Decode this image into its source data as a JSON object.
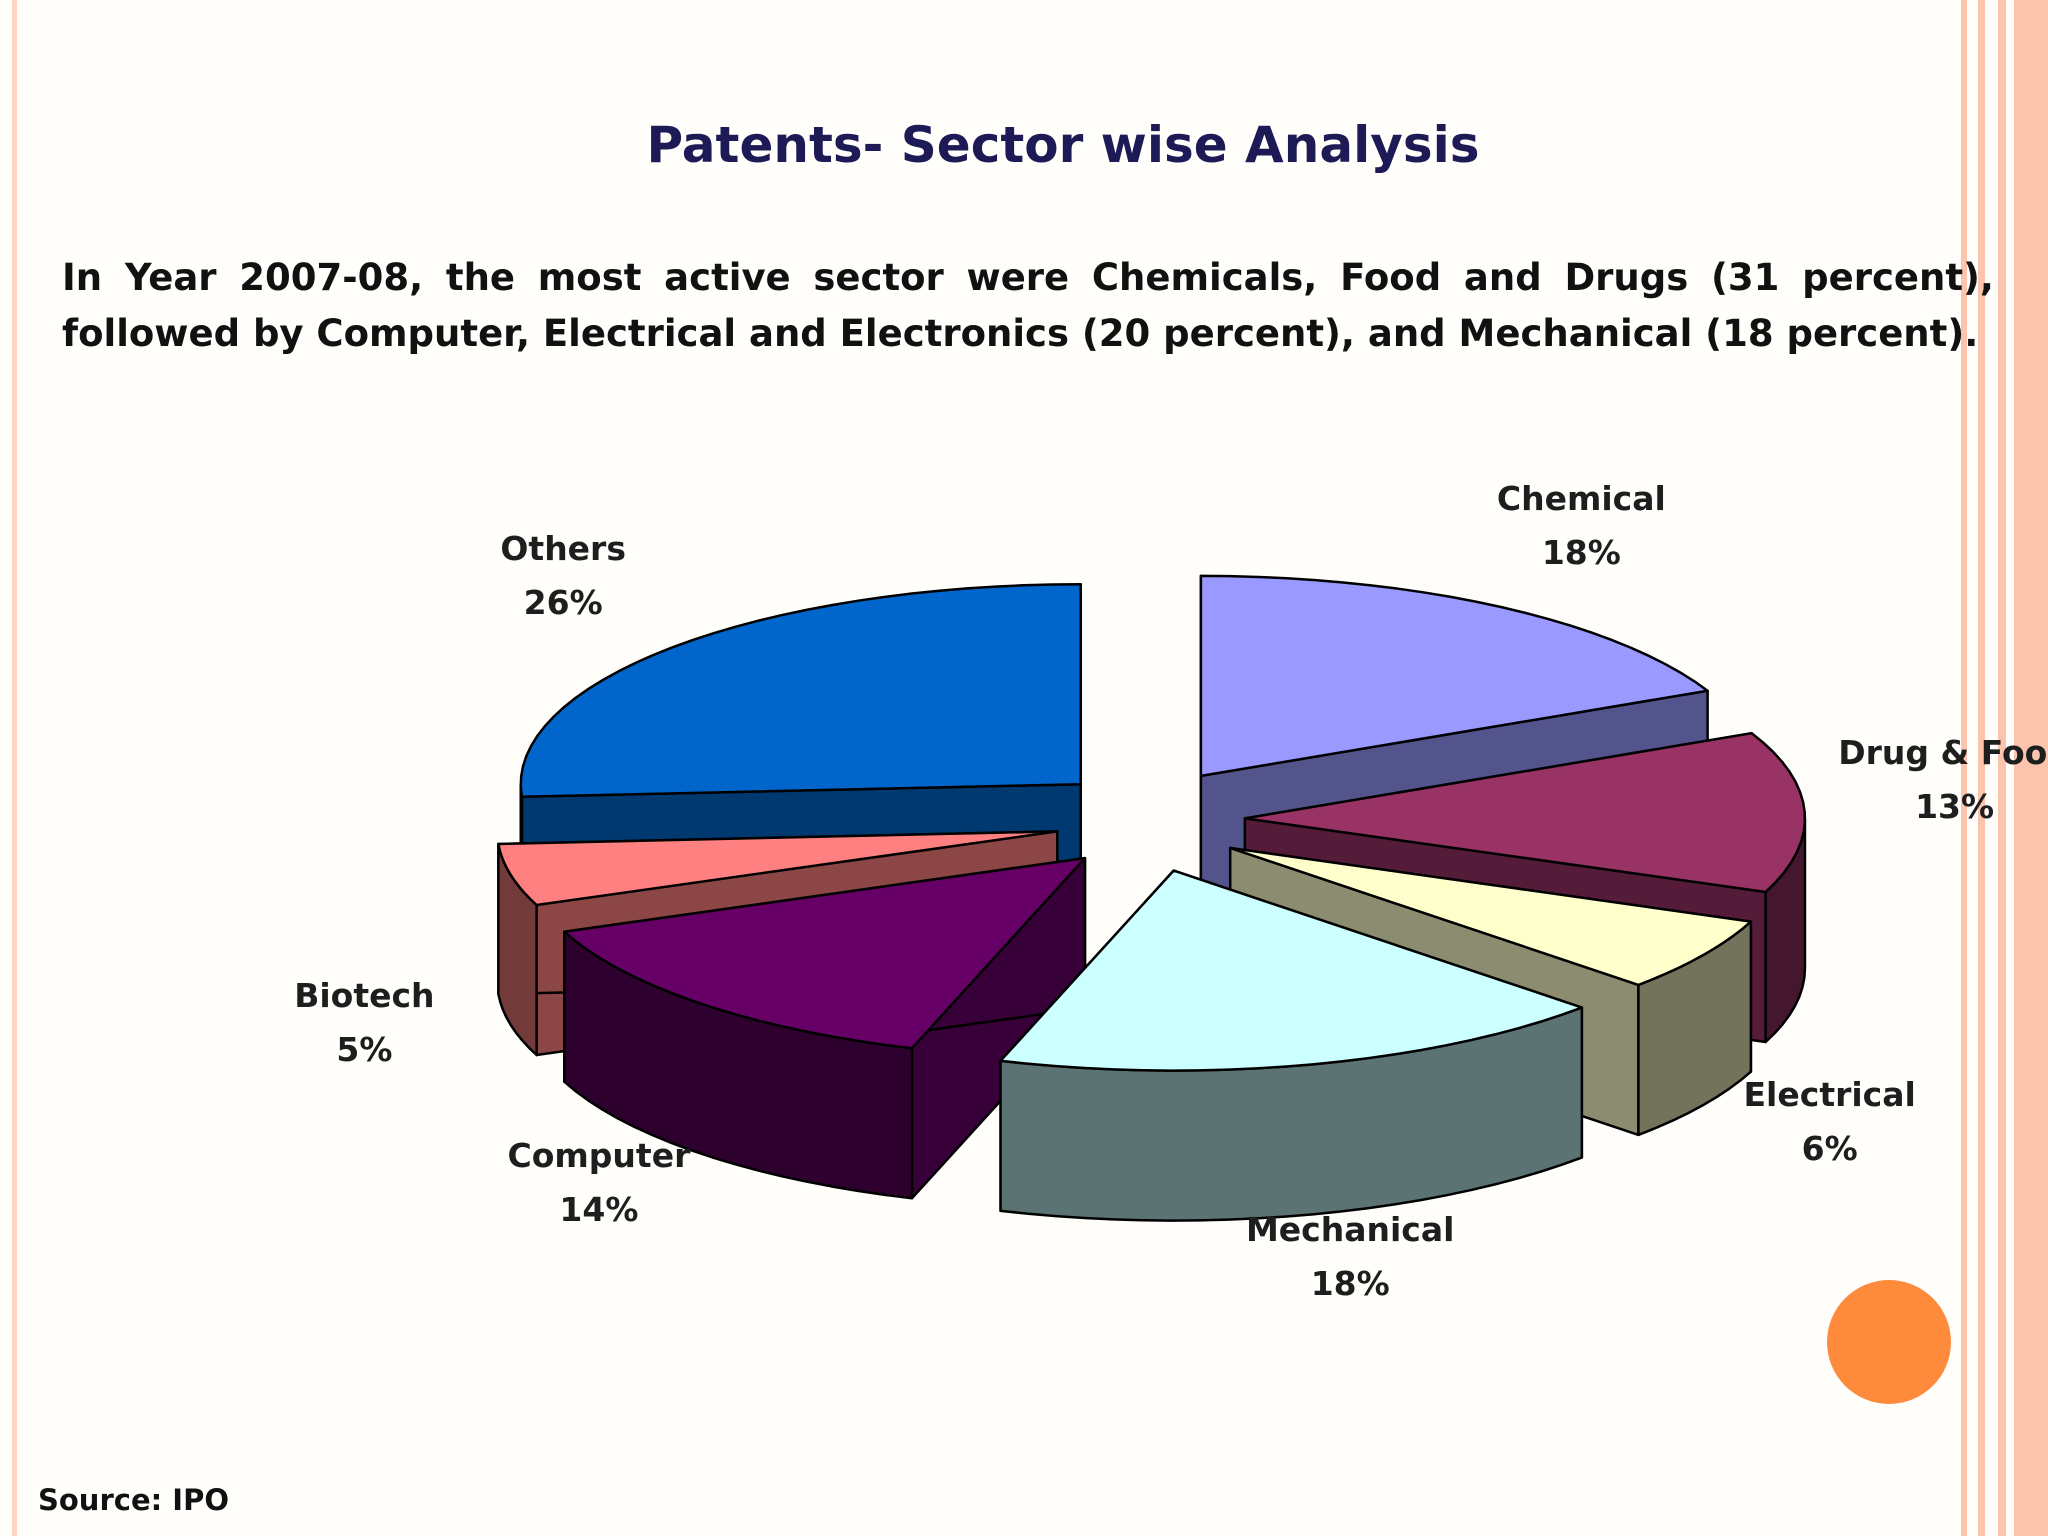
{
  "slide": {
    "title": "Patents- Sector wise Analysis",
    "summary": "In Year 2007-08, the most active sector were Chemicals, Food and Drugs (31 percent),  followed by Computer, Electrical and Electronics (20 percent), and Mechanical (18 percent).",
    "source": "Source: IPO"
  },
  "colors": {
    "border_stripe": "#fcc4ad",
    "accent_dot": "#fe8a3c",
    "title": "#1d1a55"
  },
  "chart_data": {
    "type": "pie",
    "title": "",
    "style": "3d-exploded",
    "legend": "none",
    "slices": [
      {
        "label": "Chemical",
        "pct_label": "18%",
        "value": 18,
        "color": "#9999ff"
      },
      {
        "label": "Drug & Food",
        "pct_label": "13%",
        "value": 13,
        "color": "#993366"
      },
      {
        "label": "Electrical",
        "pct_label": "6%",
        "value": 6,
        "color": "#ffffcc"
      },
      {
        "label": "Mechanical",
        "pct_label": "18%",
        "value": 18,
        "color": "#ccffff"
      },
      {
        "label": "Computer",
        "pct_label": "14%",
        "value": 14,
        "color": "#660066"
      },
      {
        "label": "Biotech",
        "pct_label": "5%",
        "value": 5,
        "color": "#ff8080"
      },
      {
        "label": "Others",
        "pct_label": "26%",
        "value": 26,
        "color": "#0066cc"
      }
    ]
  }
}
